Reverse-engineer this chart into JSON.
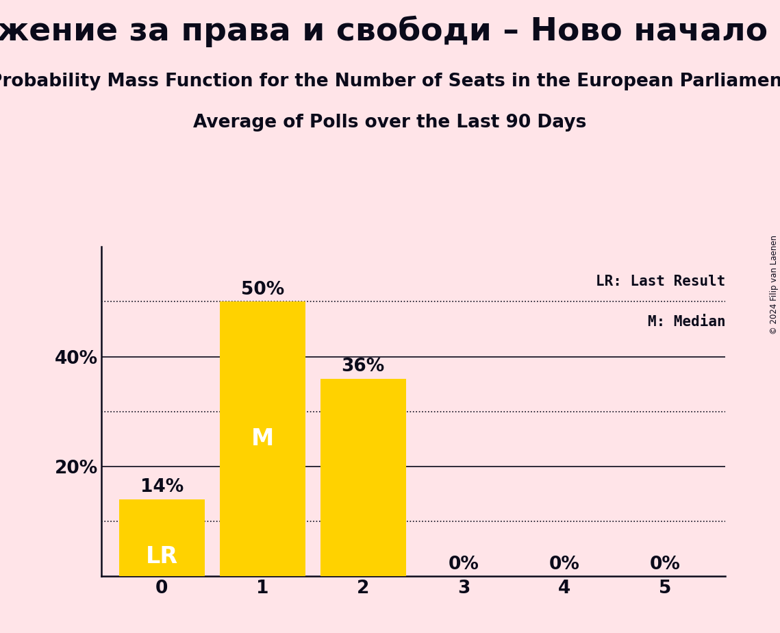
{
  "title": "Движение за права и свободи – Ново начало (RE)",
  "subtitle": "Probability Mass Function for the Number of Seats in the European Parliament",
  "subsubtitle": "Average of Polls over the Last 90 Days",
  "categories": [
    0,
    1,
    2,
    3,
    4,
    5
  ],
  "values": [
    0.14,
    0.5,
    0.36,
    0.0,
    0.0,
    0.0
  ],
  "bar_color": "#FFD200",
  "background_color": "#FFE4E8",
  "bar_labels": [
    "14%",
    "50%",
    "36%",
    "0%",
    "0%",
    "0%"
  ],
  "text_color": "#0a0a1a",
  "LR_bar_index": 0,
  "M_bar_index": 1,
  "dotted_lines": [
    0.5,
    0.3,
    0.1
  ],
  "solid_lines": [
    0.2,
    0.4
  ],
  "yticks": [
    0.2,
    0.4
  ],
  "ytick_labels": [
    "20%",
    "40%"
  ],
  "ylim": [
    0,
    0.6
  ],
  "copyright_text": "© 2024 Filip van Laenen",
  "legend_LR": "LR: Last Result",
  "legend_M": "M: Median",
  "title_fontsize": 34,
  "subtitle_fontsize": 19,
  "subsubtitle_fontsize": 19,
  "bar_label_fontsize": 19,
  "inside_label_fontsize": 24,
  "axis_label_fontsize": 19,
  "legend_fontsize": 15
}
